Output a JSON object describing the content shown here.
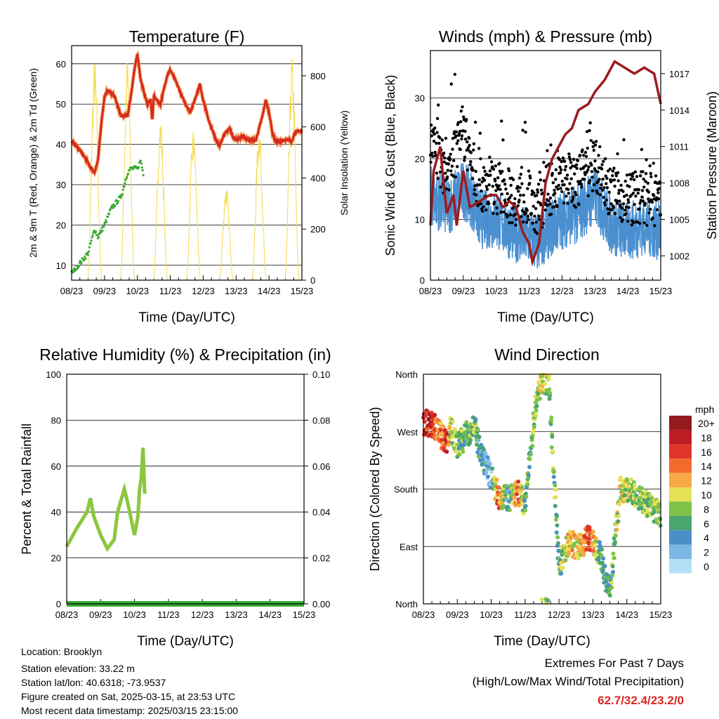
{
  "chart_data": [
    {
      "type": "line",
      "title": "Temperature (F)",
      "xlabel": "Time (Day/UTC)",
      "ylabel": "2m & 9m T (Red, Orange) & 2m Td (Green)",
      "ylabel_right": "Solar Insolation (Yellow)",
      "xlim": [
        0,
        7
      ],
      "ylim": [
        6.3,
        64.5
      ],
      "ylim_right": [
        0,
        918
      ],
      "x_ticks": [
        "08/23",
        "09/23",
        "10/23",
        "11/23",
        "12/23",
        "13/23",
        "14/23",
        "15/23"
      ],
      "y_ticks": [
        10,
        20,
        30,
        40,
        50,
        60
      ],
      "y_ticks_right": [
        0,
        200,
        400,
        600,
        800
      ],
      "grid": true,
      "series": [
        {
          "name": "2m T",
          "color": "#d42a22",
          "axis": "left",
          "x": [
            0,
            0.3,
            0.6,
            0.7,
            0.8,
            0.9,
            1.0,
            1.1,
            1.3,
            1.5,
            1.7,
            1.8,
            1.9,
            2.0,
            2.1,
            2.2,
            2.3,
            2.4,
            2.45,
            2.5,
            2.7,
            2.9,
            3.0,
            3.2,
            3.4,
            3.6,
            3.7,
            3.9,
            4.0,
            4.2,
            4.4,
            4.5,
            4.6,
            4.8,
            4.9,
            5.0,
            5.2,
            5.4,
            5.6,
            5.8,
            5.9,
            6.0,
            6.1,
            6.2,
            6.5,
            6.7,
            6.8,
            7.0
          ],
          "y": [
            41,
            38,
            34,
            33,
            36,
            45,
            52,
            53.5,
            52,
            47,
            47,
            52,
            58,
            62.5,
            56,
            53,
            50,
            51,
            46,
            52,
            50,
            57,
            58.5,
            55,
            51,
            48,
            50,
            55,
            51,
            45,
            41,
            39.5,
            42,
            44,
            42,
            41,
            42,
            41,
            41,
            47,
            51,
            48,
            43,
            40.5,
            41,
            41,
            43,
            43.5
          ]
        },
        {
          "name": "2m Td",
          "color": "#3aaa35",
          "axis": "left",
          "x": [
            0,
            0.2,
            0.4,
            0.5,
            0.6,
            0.7,
            0.8,
            1.0,
            1.2,
            1.4,
            1.5,
            1.6,
            1.7,
            1.8,
            2.0,
            2.1,
            2.2
          ],
          "y": [
            8,
            10,
            12,
            13,
            16,
            19,
            17,
            20,
            24,
            26,
            27,
            30,
            33,
            34,
            34,
            36,
            32
          ]
        },
        {
          "name": "Solar Insolation",
          "color": "#f5dc50",
          "axis": "right",
          "peak_day_offset": 0.7,
          "daily_peaks": [
            880,
            880,
            650,
            600,
            380,
            620,
            880,
            230
          ]
        }
      ]
    },
    {
      "type": "scatter",
      "title": "Winds (mph) & Pressure (mb)",
      "xlabel": "Time (Day/UTC)",
      "ylabel": "Sonic Wind & Gust (Blue, Black)",
      "ylabel_right": "Station Pressure (Maroon)",
      "xlim": [
        0,
        7
      ],
      "ylim": [
        0,
        37.8
      ],
      "ylim_right": [
        1000,
        1018.9
      ],
      "x_ticks": [
        "08/23",
        "09/23",
        "10/23",
        "11/23",
        "12/23",
        "13/23",
        "14/23",
        "15/23"
      ],
      "y_ticks": [
        0,
        10,
        20,
        30
      ],
      "y_ticks_right": [
        1002,
        1005,
        1008,
        1011,
        1014,
        1017
      ],
      "grid": true,
      "series": [
        {
          "name": "Sonic Wind",
          "color": "#4a90d0",
          "x": [
            0,
            0.5,
            1,
            1.3,
            1.5,
            2,
            2.5,
            3,
            3.3,
            3.5,
            4,
            4.5,
            5,
            5.5,
            6,
            6.5,
            7
          ],
          "y": [
            14,
            12,
            15,
            13,
            10,
            10,
            8,
            7,
            6,
            8,
            10,
            11,
            14,
            9,
            8,
            9,
            8
          ]
        },
        {
          "name": "Gust",
          "color": "#000000",
          "x": [
            0,
            0.5,
            1,
            1.3,
            1.5,
            2,
            2.5,
            3,
            3.3,
            3.5,
            4,
            4.5,
            5,
            5.5,
            6,
            6.5,
            7
          ],
          "y": [
            22,
            17,
            24,
            18,
            15,
            15,
            13,
            13,
            11,
            14,
            16,
            16,
            19,
            14,
            13,
            13,
            12
          ]
        },
        {
          "name": "Station Pressure",
          "color": "#9b1b1e",
          "axis": "right",
          "x": [
            0,
            0.1,
            0.3,
            0.4,
            0.5,
            0.7,
            0.8,
            1,
            1.2,
            1.5,
            1.8,
            2.0,
            2.2,
            2.4,
            2.6,
            2.8,
            3,
            3.1,
            3.3,
            3.5,
            3.7,
            3.9,
            4.1,
            4.3,
            4.5,
            4.8,
            5.0,
            5.3,
            5.6,
            5.9,
            6.2,
            6.5,
            6.8,
            7
          ],
          "y": [
            1004.5,
            1009,
            1011,
            1008,
            1005.5,
            1007,
            1004.5,
            1009,
            1006,
            1006.5,
            1007,
            1007,
            1006,
            1006.5,
            1006,
            1004,
            1003,
            1001.5,
            1003,
            1008,
            1010,
            1011,
            1012,
            1012.5,
            1014,
            1014.5,
            1015.5,
            1016.5,
            1018,
            1017.5,
            1017,
            1017.5,
            1017,
            1014.5
          ]
        }
      ]
    },
    {
      "type": "line",
      "title": "Relative Humidity (%) & Precipitation (in)",
      "xlabel": "Time (Day/UTC)",
      "ylabel": "Percent & Total Rainfall",
      "xlim": [
        0,
        7
      ],
      "ylim": [
        0,
        100
      ],
      "ylim_right": [
        0,
        0.1
      ],
      "x_ticks": [
        "08/23",
        "09/23",
        "10/23",
        "11/23",
        "12/23",
        "13/23",
        "14/23",
        "15/23"
      ],
      "y_ticks": [
        0,
        20,
        40,
        60,
        80,
        100
      ],
      "y_ticks_right": [
        "0.00",
        "0.02",
        "0.04",
        "0.06",
        "0.08",
        "0.10"
      ],
      "grid": true,
      "series": [
        {
          "name": "Relative Humidity",
          "color": "#8cc63f",
          "x": [
            0,
            0.3,
            0.6,
            0.7,
            0.8,
            1.0,
            1.2,
            1.4,
            1.5,
            1.7,
            1.8,
            2.0,
            2.1,
            2.15,
            2.2,
            2.25,
            2.3
          ],
          "y": [
            25,
            33,
            40,
            46,
            38,
            30,
            24,
            28,
            40,
            50,
            44,
            30,
            38,
            50,
            55,
            68,
            48
          ]
        },
        {
          "name": "Total Precipitation",
          "color": "#3aaa35",
          "axis": "right",
          "x": [
            0,
            7
          ],
          "y": [
            0,
            0
          ]
        }
      ]
    },
    {
      "type": "scatter",
      "title": "Wind Direction",
      "xlabel": "Time (Day/UTC)",
      "ylabel": "Direction (Colored By Speed)",
      "xlim": [
        0,
        7
      ],
      "ylim": [
        0,
        360
      ],
      "x_ticks": [
        "08/23",
        "09/23",
        "10/23",
        "11/23",
        "12/23",
        "13/23",
        "14/23",
        "15/23"
      ],
      "y_ticks": [
        "North",
        "East",
        "South",
        "West",
        "North"
      ],
      "grid": true,
      "points": {
        "x": [
          0,
          0.3,
          0.5,
          0.7,
          0.8,
          1.0,
          1.2,
          1.5,
          1.7,
          2,
          2.2,
          2.5,
          2.8,
          3.0,
          3.3,
          3.5,
          3.7,
          4.0,
          4.3,
          4.6,
          4.9,
          5.2,
          5.5,
          5.8,
          6.2,
          6.5,
          7
        ],
        "direction": [
          285,
          280,
          265,
          255,
          275,
          250,
          260,
          280,
          230,
          200,
          170,
          165,
          175,
          155,
          310,
          350,
          345,
          60,
          95,
          90,
          105,
          80,
          15,
          180,
          175,
          160,
          140
        ],
        "speed": [
          18,
          16,
          12,
          18,
          8,
          8,
          6,
          8,
          4,
          2,
          16,
          4,
          14,
          6,
          8,
          10,
          8,
          6,
          12,
          10,
          16,
          6,
          6,
          10,
          8,
          8,
          8
        ]
      },
      "legend": {
        "title": "mph",
        "position": "right",
        "labels": [
          "20+",
          "18",
          "16",
          "14",
          "12",
          "10",
          "8",
          "6",
          "4",
          "2",
          "0"
        ],
        "colors": [
          "#951a1d",
          "#bd1c24",
          "#de3429",
          "#f26a2c",
          "#f7a945",
          "#e5e155",
          "#7ec24a",
          "#4aa56f",
          "#4a8fc7",
          "#7cb8e4",
          "#b3e0f7"
        ]
      }
    }
  ],
  "footer": {
    "location": "Location: Brooklyn",
    "elevation": "Station elevation: 33.22 m",
    "latlon": "Station lat/lon: 40.6318; -73.9537",
    "created": "Figure created on Sat, 2025-03-15, at 23:53 UTC",
    "timestamp": "Most recent data timestamp: 2025/03/15 23:15:00"
  },
  "extremes": {
    "title": "Extremes For Past 7 Days",
    "subtitle": "(High/Low/Max Wind/Total Precipitation)",
    "values": "62.7/32.4/23.2/0",
    "color": "#d42a22"
  }
}
